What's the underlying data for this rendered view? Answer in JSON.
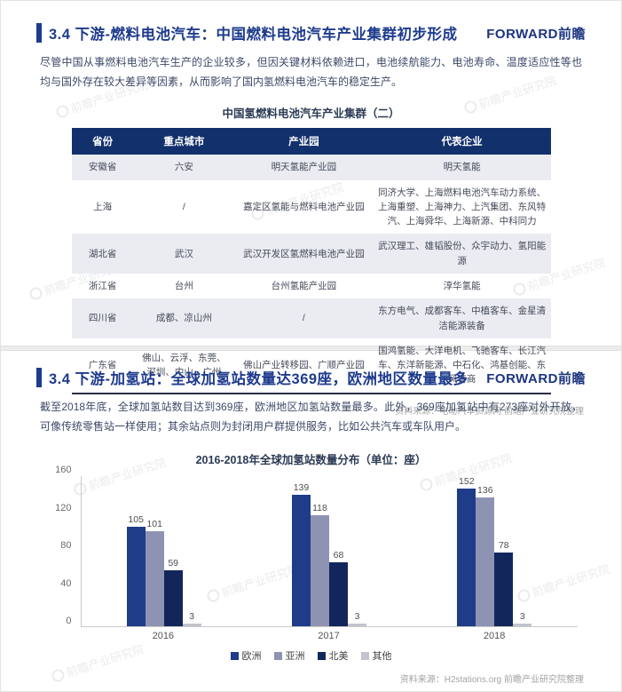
{
  "watermark": {
    "text": "前瞻产业研究院"
  },
  "section1": {
    "title": "3.4 下游-燃料电池汽车：中国燃料电池汽车产业集群初步形成",
    "logo": "FORWARD前瞻",
    "paragraph": "尽管中国从事燃料电池汽车生产的企业较多，但因关键材料依赖进口，电池续航能力、电池寿命、温度适应性等也均与国外存在较大差异等因素，从而影响了国内氢燃料电池汽车的稳定生产。",
    "table": {
      "title": "中国氢燃料电池汽车产业集群（二）",
      "headers": [
        "省份",
        "重点城市",
        "产业园",
        "代表企业"
      ],
      "rows": [
        [
          "安徽省",
          "六安",
          "明天氢能产业园",
          "明天氢能"
        ],
        [
          "上海",
          "/",
          "嘉定区氢能与燃料电池产业园",
          "同济大学、上海燃料电池汽车动力系统、上海重塑、上海神力、上汽集团、东风特汽、上海舜华、上海新源、中科同力"
        ],
        [
          "湖北省",
          "武汉",
          "武汉开发区氢燃料电池产业园",
          "武汉理工、雄韬股份、众宇动力、氢阳能源"
        ],
        [
          "浙江省",
          "台州",
          "台州氢能产业园",
          "淳华氢能"
        ],
        [
          "四川省",
          "成都、凉山州",
          "/",
          "东方电气、成都客车、中植客车、金星清洁能源装备"
        ],
        [
          "广东省",
          "佛山、云浮、东莞、深圳、中山、广州",
          "佛山产业转移园、广顺产业园",
          "国鸿氢能、大洋电机、飞驰客车、长江汽车、东洋新能源、中石化、鸿基创能、东风特商"
        ]
      ]
    },
    "source": "资料来源：电动汽车资源网 前瞻产业研究院整理"
  },
  "section2": {
    "title": "3.4 下游-加氢站：全球加氢站数量达369座，欧洲地区数量最多",
    "logo": "FORWARD前瞻",
    "paragraph": "截至2018年底，全球加氢站数目达到369座，欧洲地区加氢站数量最多。此外，369座加氢站中有273座对外开放，可像传统零售站一样使用；其余站点则为封闭用户群提供服务，比如公共汽车或车队用户。",
    "source": "资料来源：H2stations.org 前瞻产业研究院整理"
  },
  "chart_data": {
    "type": "bar",
    "title": "2016-2018年全球加氢站数量分布（单位：座）",
    "categories": [
      "2016",
      "2017",
      "2018"
    ],
    "series": [
      {
        "name": "欧洲",
        "color": "#1F3C88",
        "values": [
          105,
          139,
          152
        ]
      },
      {
        "name": "亚洲",
        "color": "#8F93B3",
        "values": [
          101,
          118,
          136
        ]
      },
      {
        "name": "北美",
        "color": "#13265C",
        "values": [
          59,
          68,
          78
        ]
      },
      {
        "name": "其他",
        "color": "#C2C5CD",
        "values": [
          3,
          3,
          3
        ]
      }
    ],
    "ylim": [
      0,
      160
    ],
    "yticks": [
      0,
      40,
      80,
      120,
      160
    ],
    "xlabel": "",
    "ylabel": "",
    "grid": false,
    "legend_position": "bottom"
  }
}
